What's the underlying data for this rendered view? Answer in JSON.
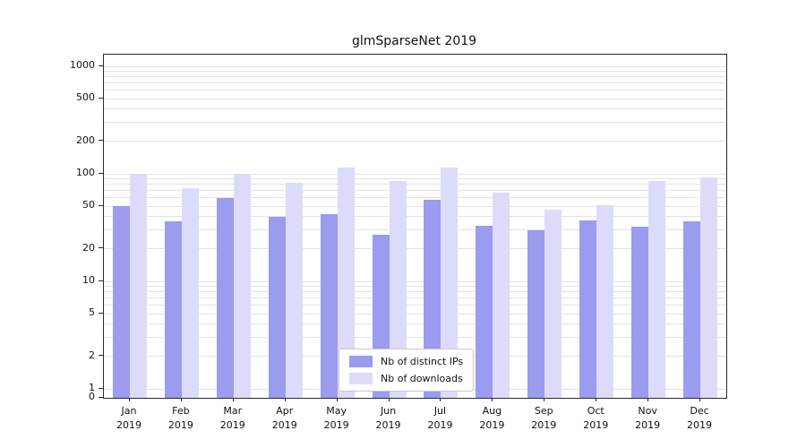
{
  "chart_data": {
    "type": "bar",
    "title": "glmSparseNet 2019",
    "year": "2019",
    "categories": [
      "Jan",
      "Feb",
      "Mar",
      "Apr",
      "May",
      "Jun",
      "Jul",
      "Aug",
      "Sep",
      "Oct",
      "Nov",
      "Dec"
    ],
    "series": [
      {
        "name": "Nb of distinct IPs",
        "color": "#9b9bef",
        "values": [
          50,
          36,
          60,
          40,
          42,
          27,
          57,
          33,
          30,
          37,
          32,
          36
        ]
      },
      {
        "name": "Nb of downloads",
        "color": "#dcdcfa",
        "values": [
          100,
          74,
          100,
          82,
          115,
          85,
          115,
          67,
          46,
          51,
          85,
          93
        ]
      }
    ],
    "y_axis": {
      "scale": "symlog",
      "ticks": [
        1000,
        500,
        200,
        100,
        50,
        20,
        10,
        5,
        2,
        1,
        0
      ]
    },
    "legend_position": "lower center",
    "grid": "horizontal-log-minor"
  }
}
